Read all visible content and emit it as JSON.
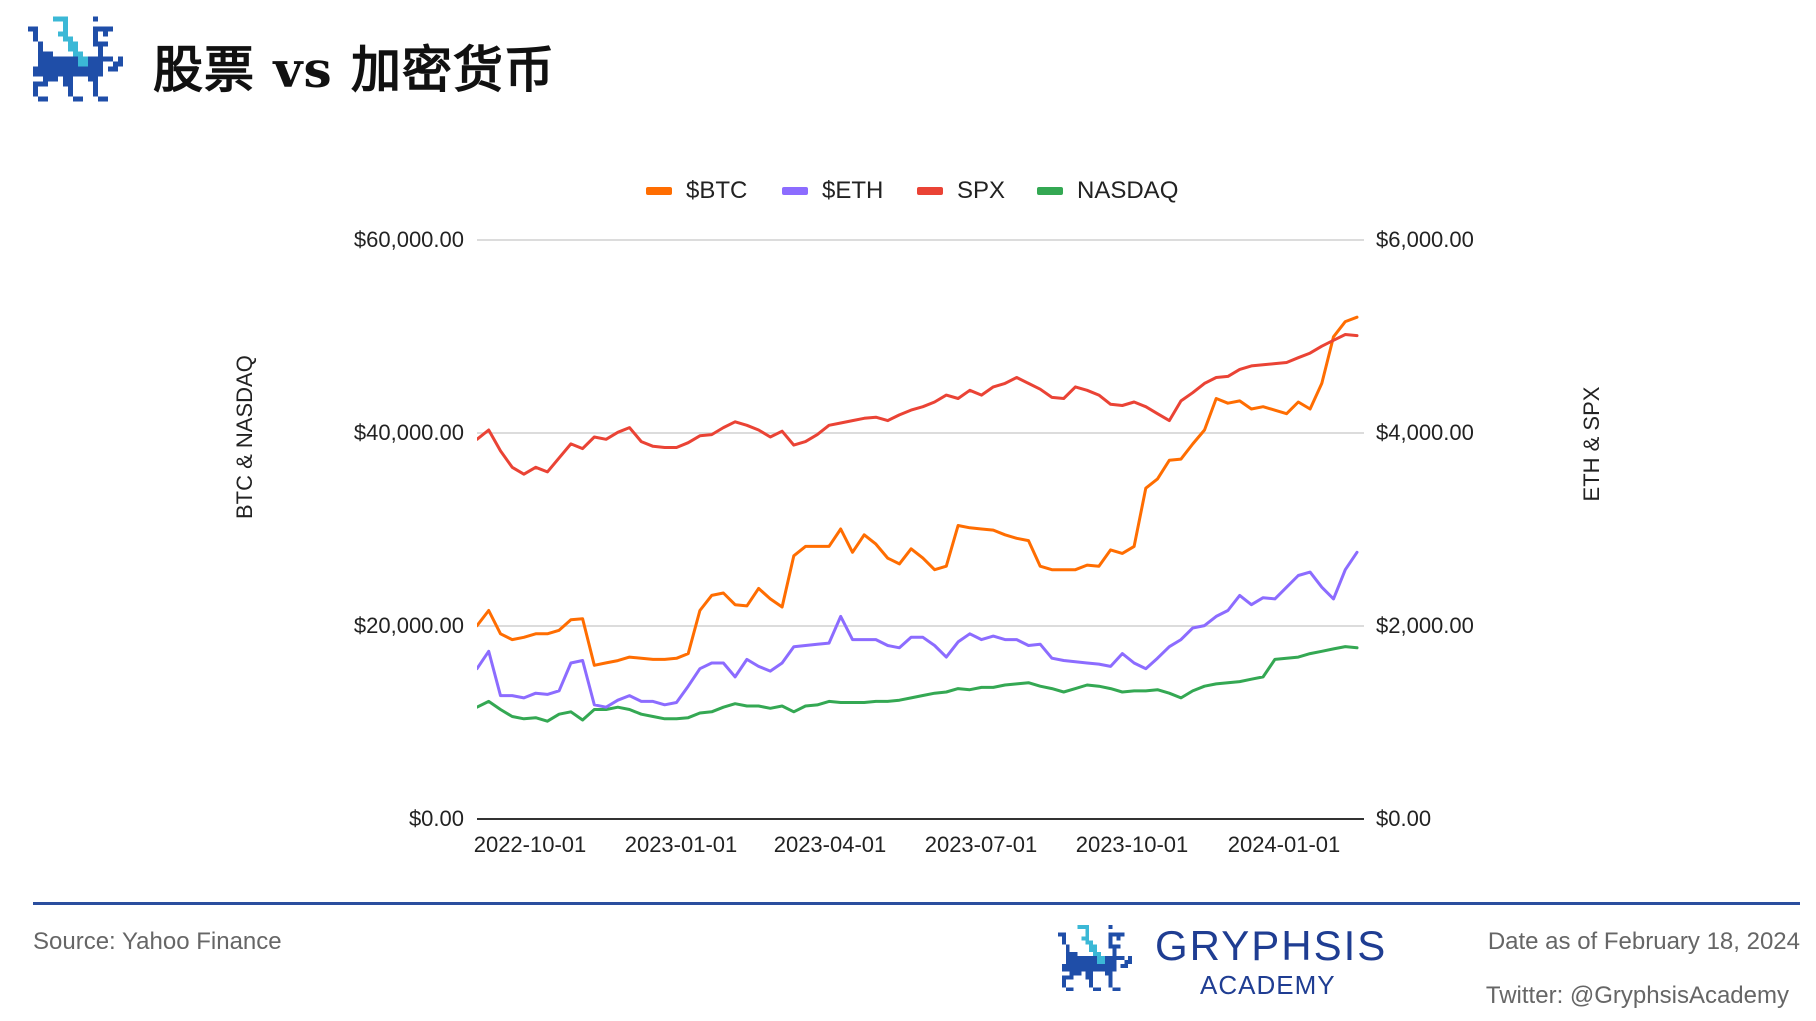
{
  "header": {
    "title": "股票 vs 加密货币",
    "logo_icon": "gryphon-pixel-logo-icon"
  },
  "footer": {
    "source": "Source: Yahoo Finance",
    "brand_name": "GRYPHSIS",
    "brand_sub": "ACADEMY",
    "date": "Date as of February 18, 2024",
    "twitter": "Twitter: @GryphsisAcademy",
    "divider_color": "#2a4e9e"
  },
  "colors": {
    "btc": "#ff6d01",
    "eth": "#8c6cff",
    "spx": "#ea4335",
    "nasdaq": "#34a853",
    "brand_blue": "#1f3d92",
    "brand_cyan": "#3bb8d6"
  },
  "chart_data": {
    "type": "line",
    "title": "",
    "legend": [
      "$BTC",
      "$ETH",
      "SPX",
      "NASDAQ"
    ],
    "legend_position": "top",
    "grid": true,
    "xlabel": "",
    "ylabel_left": "BTC & NASDAQ",
    "ylabel_right": "ETH & SPX",
    "ylim_left": [
      0,
      60000
    ],
    "ylim_right": [
      0,
      6000
    ],
    "yticks_left": [
      "$60,000.00",
      "$40,000.00",
      "$20,000.00",
      "$0.00"
    ],
    "yticks_right": [
      "$6,000.00",
      "$4,000.00",
      "$2,000.00",
      "$0.00"
    ],
    "xticks": [
      "2022-10-01",
      "2023-01-01",
      "2023-04-01",
      "2023-07-01",
      "2023-10-01",
      "2024-01-01"
    ],
    "x_start": "2022-09-02",
    "x_end": "2024-02-16",
    "x_step": "weekly (approx.)",
    "series": [
      {
        "name": "$BTC",
        "axis": "left",
        "color": "#ff6d01",
        "values": [
          20036,
          21605,
          19191,
          18588,
          18829,
          19191,
          19191,
          19553,
          20640,
          20760,
          15932,
          16174,
          16415,
          16777,
          16657,
          16536,
          16536,
          16657,
          17139,
          21605,
          23174,
          23416,
          22209,
          22088,
          23899,
          22812,
          21967,
          27278,
          28244,
          28244,
          28244,
          30054,
          27640,
          29451,
          28485,
          27037,
          26433,
          28002,
          27037,
          25830,
          26192,
          30416,
          30175,
          30054,
          29934,
          29451,
          29089,
          28847,
          26192,
          25830,
          25830,
          25830,
          26313,
          26192,
          27882,
          27520,
          28244,
          34279,
          35244,
          37176,
          37296,
          38865,
          40314,
          43573,
          43090,
          43331,
          42486,
          42728,
          42366,
          42004,
          43211,
          42486,
          45141,
          49970,
          51539,
          52000
        ]
      },
      {
        "name": "$ETH",
        "axis": "right",
        "color": "#8c6cff",
        "values": [
          1557,
          1738,
          1279,
          1279,
          1255,
          1304,
          1291,
          1328,
          1617,
          1642,
          1183,
          1159,
          1231,
          1279,
          1219,
          1219,
          1183,
          1207,
          1376,
          1557,
          1617,
          1617,
          1473,
          1654,
          1581,
          1533,
          1617,
          1786,
          1798,
          1811,
          1823,
          2100,
          1859,
          1859,
          1859,
          1798,
          1774,
          1883,
          1883,
          1798,
          1678,
          1835,
          1919,
          1859,
          1895,
          1859,
          1859,
          1798,
          1811,
          1666,
          1642,
          1629,
          1617,
          1605,
          1581,
          1714,
          1617,
          1557,
          1666,
          1786,
          1859,
          1979,
          2004,
          2100,
          2161,
          2317,
          2221,
          2293,
          2281,
          2402,
          2523,
          2559,
          2402,
          2281,
          2583,
          2764
        ]
      },
      {
        "name": "SPX",
        "axis": "right",
        "color": "#ea4335",
        "values": [
          3935,
          4031,
          3814,
          3645,
          3573,
          3645,
          3597,
          3742,
          3887,
          3838,
          3959,
          3935,
          4007,
          4056,
          3911,
          3862,
          3850,
          3850,
          3899,
          3971,
          3983,
          4056,
          4116,
          4080,
          4031,
          3959,
          4019,
          3875,
          3911,
          3983,
          4080,
          4104,
          4128,
          4152,
          4164,
          4128,
          4188,
          4237,
          4273,
          4321,
          4393,
          4357,
          4442,
          4393,
          4478,
          4514,
          4575,
          4514,
          4454,
          4369,
          4357,
          4478,
          4442,
          4393,
          4297,
          4285,
          4321,
          4273,
          4200,
          4128,
          4333,
          4418,
          4514,
          4575,
          4587,
          4659,
          4695,
          4707,
          4719,
          4731,
          4780,
          4828,
          4900,
          4961,
          5021,
          5009
        ]
      },
      {
        "name": "NASDAQ",
        "axis": "left",
        "color": "#34a853",
        "values": [
          11587,
          12191,
          11346,
          10622,
          10380,
          10501,
          10139,
          10863,
          11104,
          10260,
          11346,
          11346,
          11587,
          11346,
          10863,
          10622,
          10380,
          10380,
          10501,
          10984,
          11104,
          11587,
          11949,
          11708,
          11708,
          11467,
          11708,
          11104,
          11708,
          11829,
          12191,
          12070,
          12070,
          12070,
          12191,
          12191,
          12311,
          12553,
          12794,
          13036,
          13156,
          13518,
          13398,
          13639,
          13639,
          13881,
          14001,
          14122,
          13760,
          13518,
          13156,
          13518,
          13881,
          13760,
          13518,
          13156,
          13277,
          13277,
          13398,
          13036,
          12553,
          13277,
          13760,
          14001,
          14122,
          14243,
          14484,
          14725,
          16536,
          16657,
          16777,
          17139,
          17381,
          17622,
          17864,
          17743
        ]
      }
    ]
  }
}
